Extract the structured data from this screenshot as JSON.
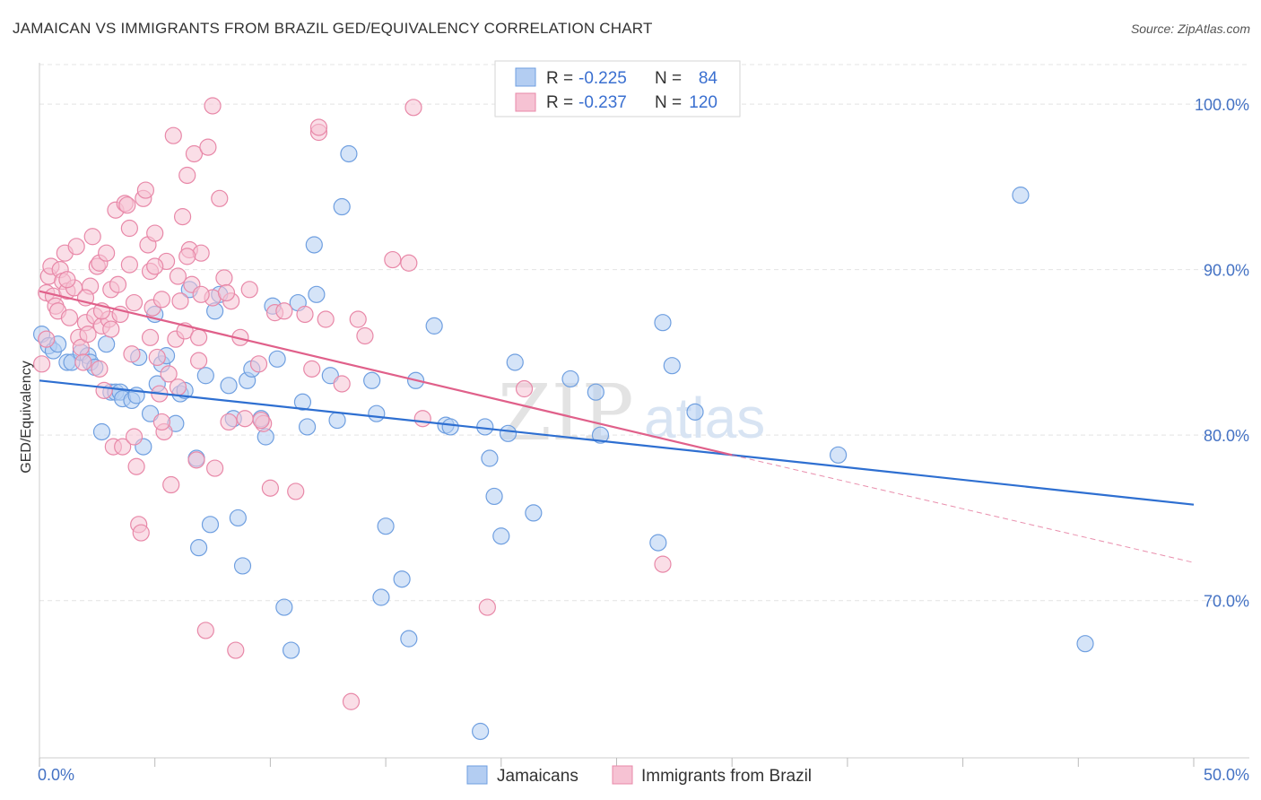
{
  "chart_data": {
    "type": "scatter",
    "title": "JAMAICAN VS IMMIGRANTS FROM BRAZIL GED/EQUIVALENCY CORRELATION CHART",
    "source": "Source: ZipAtlas.com",
    "xlabel": "",
    "ylabel": "GED/Equivalency",
    "xlim": [
      0,
      50
    ],
    "ylim": [
      60.5,
      102.5
    ],
    "x_tick_labels": [
      "0.0%",
      "50.0%"
    ],
    "y_ticks": [
      70,
      80,
      90,
      100
    ],
    "y_tick_labels": [
      "70.0%",
      "80.0%",
      "90.0%",
      "100.0%"
    ],
    "grid": true,
    "legend_position": "top-center",
    "watermark": {
      "zip": "ZIP",
      "atlas": "atlas"
    },
    "legend_top": [
      {
        "r_label": "R =",
        "r_value": "-0.225",
        "n_label": "N =",
        "n_value": "84"
      },
      {
        "r_label": "R =",
        "r_value": "-0.237",
        "n_label": "N =",
        "n_value": "120"
      }
    ],
    "series": [
      {
        "name": "Jamaicans",
        "color": "#6f9fe0",
        "fill": "#b3cdf2",
        "line_color": "#2e6fd1",
        "trend": {
          "x": [
            0,
            50
          ],
          "y": [
            83.3,
            75.8
          ]
        },
        "points": [
          [
            0.1,
            86.1
          ],
          [
            0.4,
            85.4
          ],
          [
            0.6,
            85.1
          ],
          [
            0.8,
            85.5
          ],
          [
            1.2,
            84.4
          ],
          [
            1.4,
            84.4
          ],
          [
            1.8,
            85.0
          ],
          [
            2.1,
            84.8
          ],
          [
            2.2,
            84.4
          ],
          [
            2.4,
            84.1
          ],
          [
            2.7,
            80.2
          ],
          [
            2.9,
            85.5
          ],
          [
            3.1,
            82.6
          ],
          [
            3.3,
            82.6
          ],
          [
            3.5,
            82.6
          ],
          [
            3.6,
            82.2
          ],
          [
            4.0,
            82.1
          ],
          [
            4.2,
            82.4
          ],
          [
            4.3,
            84.7
          ],
          [
            4.5,
            79.3
          ],
          [
            4.8,
            81.3
          ],
          [
            5.0,
            87.3
          ],
          [
            5.1,
            83.1
          ],
          [
            5.3,
            84.3
          ],
          [
            5.5,
            84.8
          ],
          [
            5.9,
            80.7
          ],
          [
            6.1,
            82.5
          ],
          [
            6.3,
            82.7
          ],
          [
            6.5,
            88.8
          ],
          [
            6.8,
            78.6
          ],
          [
            6.9,
            73.2
          ],
          [
            7.2,
            83.6
          ],
          [
            7.4,
            74.6
          ],
          [
            7.6,
            87.5
          ],
          [
            7.8,
            88.5
          ],
          [
            8.2,
            83.0
          ],
          [
            8.4,
            81.0
          ],
          [
            8.6,
            75.0
          ],
          [
            8.8,
            72.1
          ],
          [
            9.0,
            83.3
          ],
          [
            9.2,
            84.0
          ],
          [
            9.6,
            81.0
          ],
          [
            9.8,
            79.9
          ],
          [
            10.1,
            87.8
          ],
          [
            10.3,
            84.6
          ],
          [
            10.6,
            69.6
          ],
          [
            10.9,
            67.0
          ],
          [
            11.2,
            88.0
          ],
          [
            11.4,
            82.0
          ],
          [
            11.6,
            80.5
          ],
          [
            11.9,
            91.5
          ],
          [
            12.0,
            88.5
          ],
          [
            12.6,
            83.6
          ],
          [
            12.9,
            80.9
          ],
          [
            13.1,
            93.8
          ],
          [
            13.4,
            97.0
          ],
          [
            14.4,
            83.3
          ],
          [
            14.6,
            81.3
          ],
          [
            14.8,
            70.2
          ],
          [
            15.0,
            74.5
          ],
          [
            15.7,
            71.3
          ],
          [
            16.0,
            67.7
          ],
          [
            16.3,
            83.3
          ],
          [
            17.1,
            86.6
          ],
          [
            17.6,
            80.6
          ],
          [
            17.8,
            80.5
          ],
          [
            19.1,
            62.1
          ],
          [
            19.3,
            80.5
          ],
          [
            19.5,
            78.6
          ],
          [
            19.7,
            76.3
          ],
          [
            20.0,
            73.9
          ],
          [
            20.3,
            80.1
          ],
          [
            20.6,
            84.4
          ],
          [
            21.4,
            75.3
          ],
          [
            23.0,
            83.4
          ],
          [
            24.1,
            82.6
          ],
          [
            24.3,
            80.0
          ],
          [
            26.8,
            73.5
          ],
          [
            27.0,
            86.8
          ],
          [
            27.4,
            84.2
          ],
          [
            28.4,
            81.4
          ],
          [
            34.6,
            78.8
          ],
          [
            42.5,
            94.5
          ],
          [
            45.3,
            67.4
          ]
        ]
      },
      {
        "name": "Immigrants from Brazil",
        "color": "#e888a8",
        "fill": "#f6c2d3",
        "line_color": "#e0608a",
        "trend": {
          "x": [
            0,
            30
          ],
          "y": [
            88.7,
            78.8
          ]
        },
        "trend_ext": {
          "x": [
            30,
            50
          ],
          "y": [
            78.8,
            72.3
          ]
        },
        "points": [
          [
            0.1,
            84.3
          ],
          [
            0.3,
            88.6
          ],
          [
            0.4,
            89.6
          ],
          [
            0.5,
            90.2
          ],
          [
            0.6,
            88.4
          ],
          [
            0.7,
            87.8
          ],
          [
            0.8,
            87.5
          ],
          [
            0.9,
            90.0
          ],
          [
            1.0,
            89.3
          ],
          [
            1.1,
            91.0
          ],
          [
            1.2,
            88.7
          ],
          [
            1.3,
            87.1
          ],
          [
            1.5,
            88.9
          ],
          [
            1.7,
            85.9
          ],
          [
            1.8,
            85.3
          ],
          [
            1.9,
            84.4
          ],
          [
            2.0,
            86.8
          ],
          [
            2.1,
            86.1
          ],
          [
            2.2,
            89.0
          ],
          [
            2.3,
            92.0
          ],
          [
            2.4,
            87.2
          ],
          [
            2.5,
            90.2
          ],
          [
            2.6,
            90.4
          ],
          [
            2.7,
            86.6
          ],
          [
            2.8,
            82.7
          ],
          [
            2.9,
            91.0
          ],
          [
            3.0,
            87.0
          ],
          [
            3.1,
            88.8
          ],
          [
            3.2,
            79.3
          ],
          [
            3.3,
            93.6
          ],
          [
            3.4,
            89.1
          ],
          [
            3.5,
            87.3
          ],
          [
            3.6,
            79.3
          ],
          [
            3.7,
            94.0
          ],
          [
            3.8,
            93.9
          ],
          [
            3.9,
            90.3
          ],
          [
            4.0,
            84.9
          ],
          [
            4.1,
            79.9
          ],
          [
            4.2,
            78.1
          ],
          [
            4.3,
            74.6
          ],
          [
            4.4,
            74.1
          ],
          [
            4.5,
            94.3
          ],
          [
            4.6,
            94.8
          ],
          [
            4.7,
            91.5
          ],
          [
            4.8,
            89.9
          ],
          [
            4.9,
            87.7
          ],
          [
            5.0,
            92.2
          ],
          [
            5.1,
            84.7
          ],
          [
            5.2,
            82.5
          ],
          [
            5.3,
            88.2
          ],
          [
            5.4,
            80.2
          ],
          [
            5.5,
            90.5
          ],
          [
            5.6,
            83.7
          ],
          [
            5.7,
            77.0
          ],
          [
            5.8,
            98.1
          ],
          [
            5.9,
            85.8
          ],
          [
            6.0,
            89.6
          ],
          [
            6.1,
            88.1
          ],
          [
            6.2,
            93.2
          ],
          [
            6.3,
            86.3
          ],
          [
            6.4,
            95.7
          ],
          [
            6.5,
            91.2
          ],
          [
            6.6,
            89.1
          ],
          [
            6.7,
            97.0
          ],
          [
            6.8,
            78.5
          ],
          [
            6.9,
            84.5
          ],
          [
            7.0,
            91.0
          ],
          [
            7.2,
            68.2
          ],
          [
            7.3,
            97.4
          ],
          [
            7.5,
            88.3
          ],
          [
            7.6,
            78.0
          ],
          [
            7.8,
            94.3
          ],
          [
            8.0,
            89.5
          ],
          [
            8.2,
            80.8
          ],
          [
            8.3,
            88.1
          ],
          [
            8.5,
            67.0
          ],
          [
            8.7,
            85.9
          ],
          [
            8.9,
            81.0
          ],
          [
            9.1,
            88.8
          ],
          [
            9.5,
            84.3
          ],
          [
            9.7,
            80.7
          ],
          [
            10.0,
            76.8
          ],
          [
            10.2,
            87.4
          ],
          [
            10.6,
            87.5
          ],
          [
            11.1,
            76.6
          ],
          [
            11.5,
            87.3
          ],
          [
            12.1,
            98.3
          ],
          [
            12.4,
            87.0
          ],
          [
            13.1,
            83.1
          ],
          [
            13.5,
            63.9
          ],
          [
            13.8,
            87.0
          ],
          [
            14.1,
            86.0
          ],
          [
            15.3,
            90.6
          ],
          [
            16.0,
            90.4
          ],
          [
            16.2,
            99.8
          ],
          [
            16.6,
            81.0
          ],
          [
            19.4,
            69.6
          ],
          [
            21.0,
            82.8
          ],
          [
            27.0,
            72.2
          ],
          [
            0.3,
            85.8
          ],
          [
            1.2,
            89.4
          ],
          [
            2.0,
            88.3
          ],
          [
            2.7,
            87.5
          ],
          [
            3.1,
            86.4
          ],
          [
            4.1,
            88.0
          ],
          [
            4.8,
            85.9
          ],
          [
            5.3,
            80.8
          ],
          [
            6.0,
            82.9
          ],
          [
            6.9,
            85.9
          ],
          [
            7.5,
            99.9
          ],
          [
            8.1,
            88.6
          ],
          [
            9.6,
            80.9
          ],
          [
            11.8,
            84.0
          ],
          [
            12.1,
            98.6
          ],
          [
            1.6,
            91.4
          ],
          [
            2.6,
            84.0
          ],
          [
            3.9,
            92.5
          ],
          [
            5.0,
            90.2
          ],
          [
            6.4,
            90.8
          ],
          [
            7.0,
            88.5
          ]
        ]
      }
    ]
  }
}
